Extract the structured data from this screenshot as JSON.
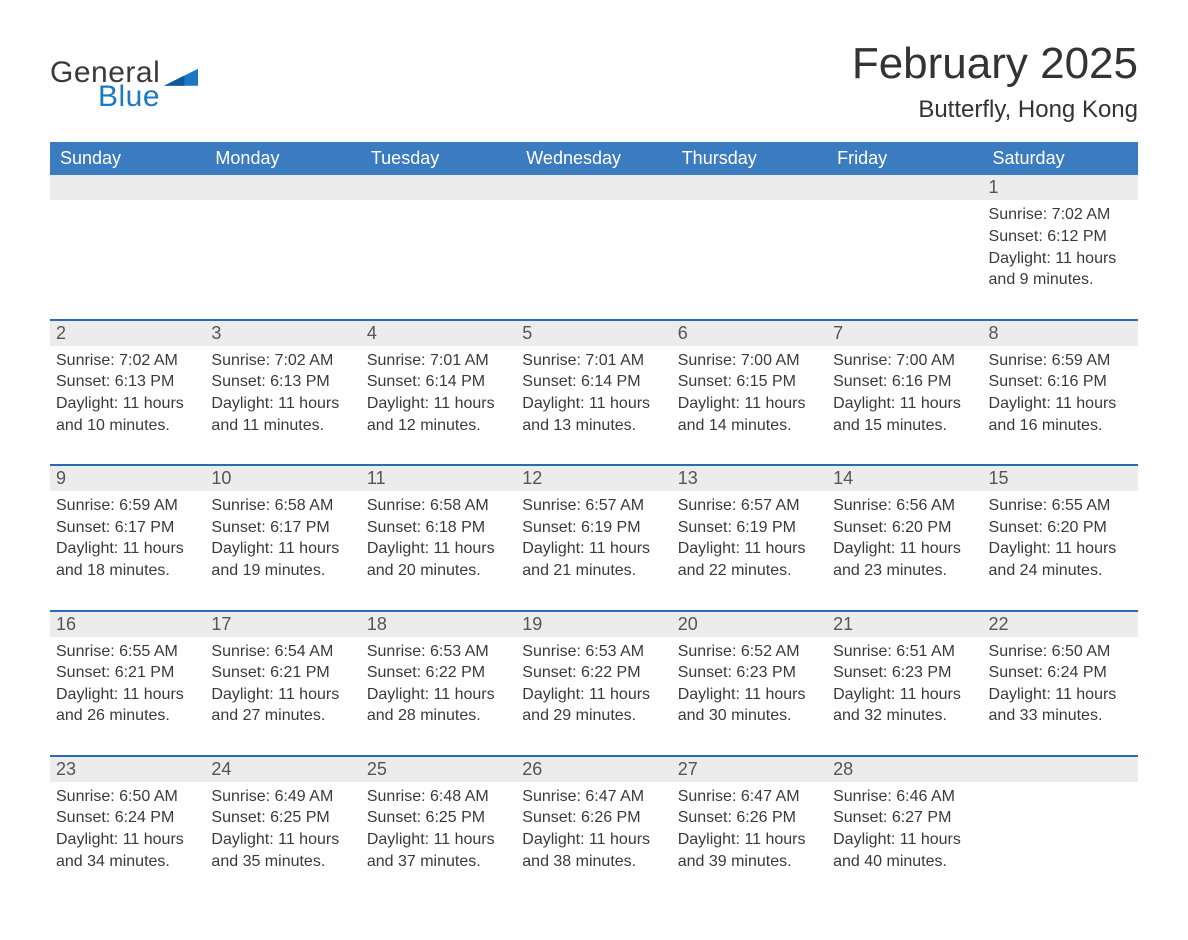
{
  "brand": {
    "word1": "General",
    "word2": "Blue"
  },
  "title": "February 2025",
  "location": "Butterfly, Hong Kong",
  "colors": {
    "header_blue": "#3b7bbf",
    "accent_blue": "#2a6cb3",
    "daynum_bg": "#ececec",
    "text": "#2e2e2e",
    "page_bg": "#ffffff",
    "logo_blue": "#1979c4"
  },
  "typography": {
    "title_fontsize_pt": 33,
    "location_fontsize_pt": 18,
    "dow_fontsize_pt": 14,
    "daynum_fontsize_pt": 14,
    "body_fontsize_pt": 12,
    "font_family": "Segoe UI / Helvetica Neue / Arial"
  },
  "days_of_week": [
    "Sunday",
    "Monday",
    "Tuesday",
    "Wednesday",
    "Thursday",
    "Friday",
    "Saturday"
  ],
  "labels": {
    "sunrise": "Sunrise",
    "sunset": "Sunset",
    "daylight": "Daylight"
  },
  "weeks": [
    [
      null,
      null,
      null,
      null,
      null,
      null,
      {
        "n": 1,
        "sunrise": "7:02 AM",
        "sunset": "6:12 PM",
        "daylight": "11 hours and 9 minutes."
      }
    ],
    [
      {
        "n": 2,
        "sunrise": "7:02 AM",
        "sunset": "6:13 PM",
        "daylight": "11 hours and 10 minutes."
      },
      {
        "n": 3,
        "sunrise": "7:02 AM",
        "sunset": "6:13 PM",
        "daylight": "11 hours and 11 minutes."
      },
      {
        "n": 4,
        "sunrise": "7:01 AM",
        "sunset": "6:14 PM",
        "daylight": "11 hours and 12 minutes."
      },
      {
        "n": 5,
        "sunrise": "7:01 AM",
        "sunset": "6:14 PM",
        "daylight": "11 hours and 13 minutes."
      },
      {
        "n": 6,
        "sunrise": "7:00 AM",
        "sunset": "6:15 PM",
        "daylight": "11 hours and 14 minutes."
      },
      {
        "n": 7,
        "sunrise": "7:00 AM",
        "sunset": "6:16 PM",
        "daylight": "11 hours and 15 minutes."
      },
      {
        "n": 8,
        "sunrise": "6:59 AM",
        "sunset": "6:16 PM",
        "daylight": "11 hours and 16 minutes."
      }
    ],
    [
      {
        "n": 9,
        "sunrise": "6:59 AM",
        "sunset": "6:17 PM",
        "daylight": "11 hours and 18 minutes."
      },
      {
        "n": 10,
        "sunrise": "6:58 AM",
        "sunset": "6:17 PM",
        "daylight": "11 hours and 19 minutes."
      },
      {
        "n": 11,
        "sunrise": "6:58 AM",
        "sunset": "6:18 PM",
        "daylight": "11 hours and 20 minutes."
      },
      {
        "n": 12,
        "sunrise": "6:57 AM",
        "sunset": "6:19 PM",
        "daylight": "11 hours and 21 minutes."
      },
      {
        "n": 13,
        "sunrise": "6:57 AM",
        "sunset": "6:19 PM",
        "daylight": "11 hours and 22 minutes."
      },
      {
        "n": 14,
        "sunrise": "6:56 AM",
        "sunset": "6:20 PM",
        "daylight": "11 hours and 23 minutes."
      },
      {
        "n": 15,
        "sunrise": "6:55 AM",
        "sunset": "6:20 PM",
        "daylight": "11 hours and 24 minutes."
      }
    ],
    [
      {
        "n": 16,
        "sunrise": "6:55 AM",
        "sunset": "6:21 PM",
        "daylight": "11 hours and 26 minutes."
      },
      {
        "n": 17,
        "sunrise": "6:54 AM",
        "sunset": "6:21 PM",
        "daylight": "11 hours and 27 minutes."
      },
      {
        "n": 18,
        "sunrise": "6:53 AM",
        "sunset": "6:22 PM",
        "daylight": "11 hours and 28 minutes."
      },
      {
        "n": 19,
        "sunrise": "6:53 AM",
        "sunset": "6:22 PM",
        "daylight": "11 hours and 29 minutes."
      },
      {
        "n": 20,
        "sunrise": "6:52 AM",
        "sunset": "6:23 PM",
        "daylight": "11 hours and 30 minutes."
      },
      {
        "n": 21,
        "sunrise": "6:51 AM",
        "sunset": "6:23 PM",
        "daylight": "11 hours and 32 minutes."
      },
      {
        "n": 22,
        "sunrise": "6:50 AM",
        "sunset": "6:24 PM",
        "daylight": "11 hours and 33 minutes."
      }
    ],
    [
      {
        "n": 23,
        "sunrise": "6:50 AM",
        "sunset": "6:24 PM",
        "daylight": "11 hours and 34 minutes."
      },
      {
        "n": 24,
        "sunrise": "6:49 AM",
        "sunset": "6:25 PM",
        "daylight": "11 hours and 35 minutes."
      },
      {
        "n": 25,
        "sunrise": "6:48 AM",
        "sunset": "6:25 PM",
        "daylight": "11 hours and 37 minutes."
      },
      {
        "n": 26,
        "sunrise": "6:47 AM",
        "sunset": "6:26 PM",
        "daylight": "11 hours and 38 minutes."
      },
      {
        "n": 27,
        "sunrise": "6:47 AM",
        "sunset": "6:26 PM",
        "daylight": "11 hours and 39 minutes."
      },
      {
        "n": 28,
        "sunrise": "6:46 AM",
        "sunset": "6:27 PM",
        "daylight": "11 hours and 40 minutes."
      },
      null
    ]
  ]
}
